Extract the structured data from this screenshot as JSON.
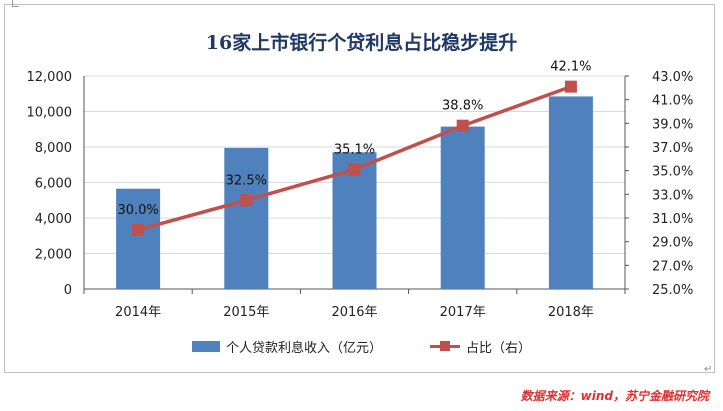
{
  "chart_data": {
    "type": "bar+line",
    "title": "16家上市银行个贷利息占比稳步提升",
    "categories": [
      "2014年",
      "2015年",
      "2016年",
      "2017年",
      "2018年"
    ],
    "series": [
      {
        "name": "个人贷款利息收入（亿元）",
        "type": "bar",
        "axis": "left",
        "values": [
          5650,
          7950,
          7700,
          9150,
          10850
        ]
      },
      {
        "name": "占比（右）",
        "type": "line",
        "axis": "right",
        "values": [
          30.0,
          32.5,
          35.1,
          38.8,
          42.1
        ],
        "data_labels": [
          "30.0%",
          "32.5%",
          "35.1%",
          "38.8%",
          "42.1%"
        ]
      }
    ],
    "y_left": {
      "ylim": [
        0,
        12000
      ],
      "ticks": [
        "0",
        "2,000",
        "4,000",
        "6,000",
        "8,000",
        "10,000",
        "12,000"
      ]
    },
    "y_right": {
      "ylim": [
        25,
        43
      ],
      "ticks": [
        "25.0%",
        "27.0%",
        "29.0%",
        "31.0%",
        "33.0%",
        "35.0%",
        "37.0%",
        "39.0%",
        "41.0%",
        "43.0%"
      ]
    },
    "grid": true,
    "legend_position": "bottom",
    "colors": {
      "bar": "#4f81bd",
      "line": "#c0504d"
    }
  },
  "legend": {
    "bar_label": "个人贷款利息收入（亿元）",
    "line_label": "占比（右）"
  },
  "source": "数据来源：wind，苏宁金融研究院",
  "return_glyph": "↵"
}
